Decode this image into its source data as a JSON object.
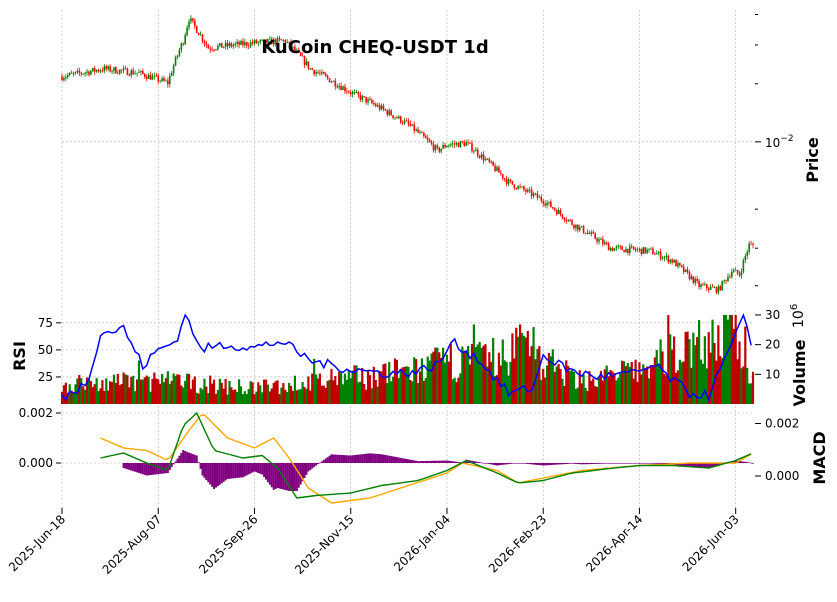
{
  "chart_data": {
    "type": "candlestick",
    "title": "KuCoin CHEQ-USDT 1d",
    "x_tick_labels": [
      "2025-Jun-18",
      "2025-Aug-07",
      "2025-Sep-26",
      "2025-Nov-15",
      "2026-Jan-04",
      "2026-Feb-23",
      "2026-Apr-14",
      "2026-Jun-03"
    ],
    "price_panel": {
      "ylabel": "Price",
      "scale": "log",
      "ytick_labels": [
        "10^-2"
      ],
      "close_keypoints": [
        {
          "date": "2025-Jun-18",
          "value": 0.0159
        },
        {
          "date": "2025-Jul-10",
          "value": 0.0168
        },
        {
          "date": "2025-Jul-28",
          "value": 0.0163
        },
        {
          "date": "2025-Aug-12",
          "value": 0.0152
        },
        {
          "date": "2025-Aug-20",
          "value": 0.0205
        },
        {
          "date": "2025-Aug-23",
          "value": 0.024
        },
        {
          "date": "2025-Sep-02",
          "value": 0.0195
        },
        {
          "date": "2025-Sep-26",
          "value": 0.0202
        },
        {
          "date": "2025-Oct-12",
          "value": 0.0205
        },
        {
          "date": "2025-Oct-25",
          "value": 0.0168
        },
        {
          "date": "2025-Nov-15",
          "value": 0.0142
        },
        {
          "date": "2025-Dec-15",
          "value": 0.0113
        },
        {
          "date": "2025-Dec-30",
          "value": 0.0094
        },
        {
          "date": "2026-Jan-04",
          "value": 0.0098
        },
        {
          "date": "2026-Jan-14",
          "value": 0.0099
        },
        {
          "date": "2026-Feb-05",
          "value": 0.0075
        },
        {
          "date": "2026-Feb-23",
          "value": 0.0066
        },
        {
          "date": "2026-Mar-10",
          "value": 0.0056
        },
        {
          "date": "2026-Mar-30",
          "value": 0.0047
        },
        {
          "date": "2026-Apr-20",
          "value": 0.0046
        },
        {
          "date": "2026-May-01",
          "value": 0.0043
        },
        {
          "date": "2026-May-15",
          "value": 0.0036
        },
        {
          "date": "2026-May-25",
          "value": 0.0035
        },
        {
          "date": "2026-Jun-01",
          "value": 0.004
        },
        {
          "date": "2026-Jun-05",
          "value": 0.0039
        },
        {
          "date": "2026-Jun-10",
          "value": 0.0048
        }
      ]
    },
    "volume_panel": {
      "ylabel": "Volume",
      "multiplier_label": "10^6",
      "ytick_labels": [
        "10",
        "20",
        "30"
      ],
      "ylim": [
        0,
        31
      ],
      "keypoints": [
        {
          "date": "2025-Jun-18",
          "value": 7
        },
        {
          "date": "2025-Aug-07",
          "value": 9
        },
        {
          "date": "2025-Sep-26",
          "value": 6
        },
        {
          "date": "2025-Nov-15",
          "value": 10
        },
        {
          "date": "2025-Dec-20",
          "value": 13
        },
        {
          "date": "2026-Jan-04",
          "value": 16
        },
        {
          "date": "2026-Feb-05",
          "value": 18
        },
        {
          "date": "2026-Feb-15",
          "value": 29
        },
        {
          "date": "2026-Feb-23",
          "value": 15
        },
        {
          "date": "2026-Mar-15",
          "value": 9
        },
        {
          "date": "2026-Apr-14",
          "value": 13
        },
        {
          "date": "2026-May-10",
          "value": 23
        },
        {
          "date": "2026-Jun-03",
          "value": 27
        },
        {
          "date": "2026-Jun-10",
          "value": 12
        }
      ]
    },
    "rsi_panel": {
      "ylabel": "RSI",
      "ytick_labels": [
        "25",
        "50",
        "75"
      ],
      "ylim": [
        0,
        85
      ],
      "series": [
        {
          "name": "",
          "color": "#0000ff",
          "x": [
            "2025-Jun-18",
            "2025-Jul-01",
            "2025-Jul-08",
            "2025-Jul-20",
            "2025-Jul-30",
            "2025-Aug-07",
            "2025-Aug-16",
            "2025-Aug-22",
            "2025-Aug-28",
            "2025-Sep-10",
            "2025-Sep-26",
            "2025-Oct-10",
            "2025-Oct-25",
            "2025-Nov-15",
            "2025-Dec-05",
            "2025-Dec-20",
            "2026-Jan-01",
            "2026-Jan-06",
            "2026-Jan-20",
            "2026-Feb-05",
            "2026-Feb-18",
            "2026-Feb-23",
            "2026-Mar-10",
            "2026-Mar-25",
            "2026-Apr-10",
            "2026-Apr-22",
            "2026-May-10",
            "2026-May-20",
            "2026-Jun-01",
            "2026-Jun-08",
            "2026-Jun-12"
          ],
          "y": [
            5,
            20,
            65,
            70,
            35,
            50,
            58,
            85,
            50,
            55,
            52,
            58,
            40,
            32,
            28,
            30,
            38,
            58,
            42,
            10,
            15,
            45,
            30,
            25,
            28,
            35,
            10,
            8,
            55,
            82,
            45
          ]
        }
      ]
    },
    "macd_panel": {
      "ylabel": "MACD",
      "ytick_labels": [
        "0.000",
        "0.002"
      ],
      "ylim": [
        -0.0018,
        0.0022
      ],
      "series": [
        {
          "name": "",
          "color": "#008000",
          "x": [
            "2025-Jul-08",
            "2025-Jul-20",
            "2025-Aug-01",
            "2025-Aug-12",
            "2025-Aug-20",
            "2025-Aug-27",
            "2025-Sep-05",
            "2025-Sep-20",
            "2025-Sep-30",
            "2025-Oct-08",
            "2025-Oct-18",
            "2025-Oct-28",
            "2025-Nov-15",
            "2025-Dec-01",
            "2025-Dec-20",
            "2026-Jan-04",
            "2026-Jan-14",
            "2026-Jan-30",
            "2026-Feb-10",
            "2026-Feb-23",
            "2026-Mar-10",
            "2026-Apr-01",
            "2026-Apr-14",
            "2026-May-01",
            "2026-May-20",
            "2026-Jun-03",
            "2026-Jun-12"
          ],
          "y": [
            0.0002,
            0.0004,
            0.0,
            -0.0003,
            0.0015,
            0.002,
            0.0005,
            0.0002,
            0.0003,
            -0.0002,
            -0.0014,
            -0.0013,
            -0.0012,
            -0.0009,
            -0.0007,
            -0.0003,
            0.0001,
            -0.0004,
            -0.0008,
            -0.0007,
            -0.0004,
            -0.0002,
            -0.0001,
            -0.0001,
            -0.0002,
            0.0001,
            0.0004
          ]
        },
        {
          "name": "",
          "color": "#ffa500",
          "x": [
            "2025-Jul-08",
            "2025-Jul-20",
            "2025-Aug-01",
            "2025-Aug-12",
            "2025-Aug-22",
            "2025-Aug-30",
            "2025-Sep-12",
            "2025-Sep-26",
            "2025-Oct-06",
            "2025-Oct-14",
            "2025-Oct-24",
            "2025-Nov-05",
            "2025-Nov-25",
            "2025-Dec-15",
            "2026-Jan-04",
            "2026-Jan-12",
            "2026-Jan-30",
            "2026-Feb-10",
            "2026-Feb-23",
            "2026-Mar-15",
            "2026-Apr-14",
            "2026-May-10",
            "2026-Jun-03",
            "2026-Jun-12"
          ],
          "y": [
            0.001,
            0.0006,
            0.0005,
            0.0001,
            0.0012,
            0.002,
            0.001,
            0.0006,
            0.001,
            0.0002,
            -0.001,
            -0.0016,
            -0.0014,
            -0.0009,
            -0.0004,
            0.0,
            -0.0003,
            -0.0008,
            -0.0006,
            -0.0003,
            -0.0001,
            0.0,
            0.0,
            0.0004
          ]
        }
      ]
    },
    "colors": {
      "up": "#008000",
      "down": "#ff0000",
      "rsi": "#0000ff",
      "macd": "#008000",
      "signal": "#ffa500",
      "histogram": "#800080",
      "grid": "#b0b0b0"
    },
    "grid": true
  }
}
